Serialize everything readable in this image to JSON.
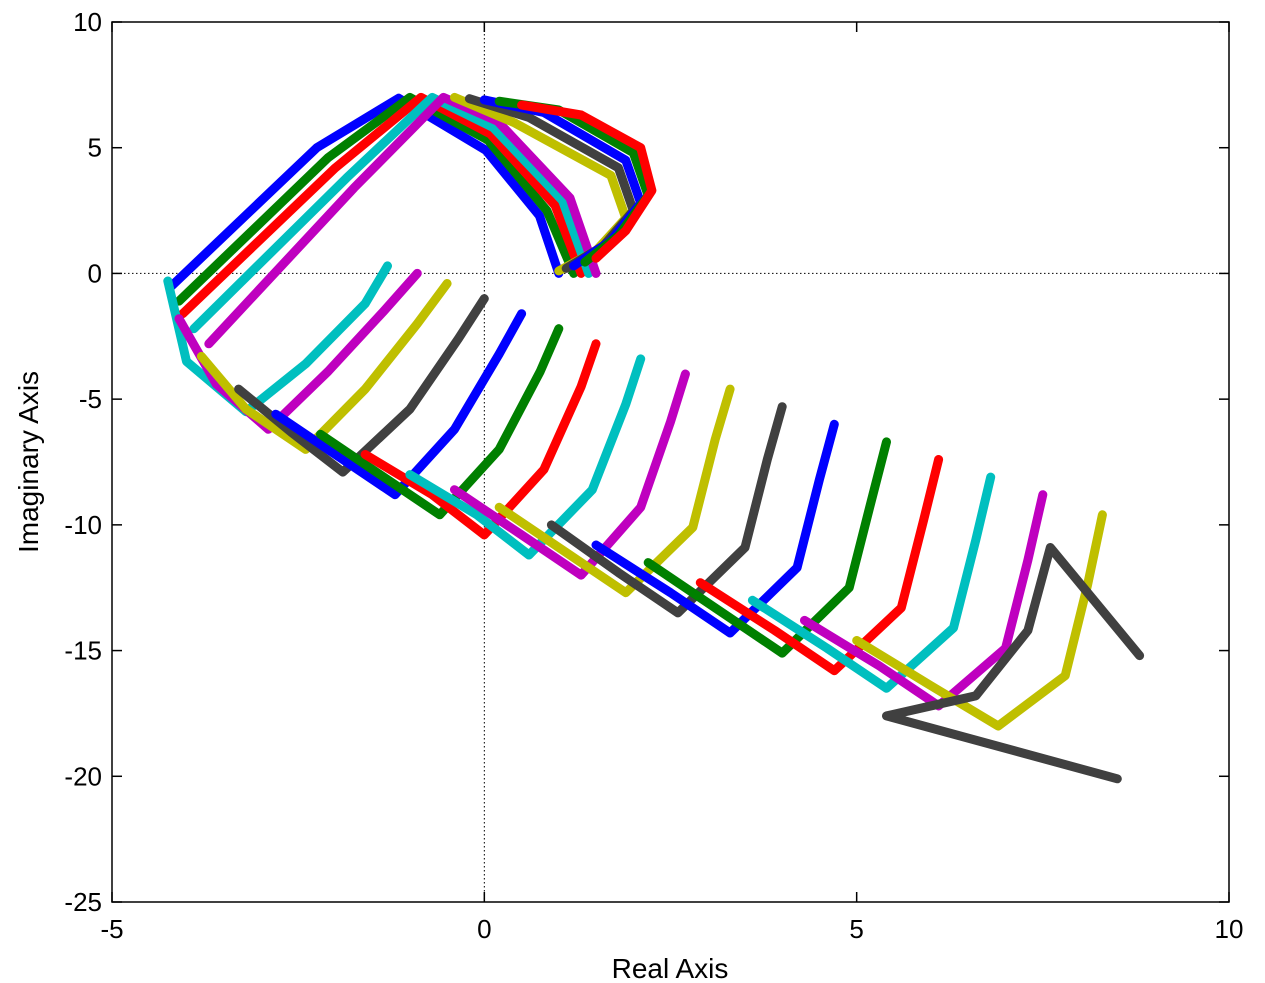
{
  "chart_data": {
    "type": "scatter",
    "title": "",
    "xlabel": "Real Axis",
    "ylabel": "Imaginary Axis",
    "xlim": [
      -5,
      10
    ],
    "ylim": [
      -25,
      10
    ],
    "xticks": [
      -5,
      0,
      5,
      10
    ],
    "yticks": [
      10,
      5,
      0,
      -5,
      -10,
      -15,
      -20,
      -25
    ],
    "grid": false,
    "legend": "none",
    "zero_lines": true,
    "colors": [
      "#0000ff",
      "#008000",
      "#ff0000",
      "#00bfbf",
      "#bf00bf",
      "#bfbf00",
      "#404040"
    ],
    "series": [
      {
        "values": [
          [
            1.0,
            0.0
          ],
          [
            0.74,
            2.3
          ],
          [
            0.02,
            4.9
          ],
          [
            -1.15,
            6.97
          ],
          [
            -2.25,
            5.0
          ],
          [
            -4.2,
            -0.5
          ]
        ]
      },
      {
        "values": [
          [
            1.2,
            0.0
          ],
          [
            0.84,
            2.5
          ],
          [
            0.05,
            5.3
          ],
          [
            -1.0,
            7.0
          ],
          [
            -2.1,
            4.6
          ],
          [
            -4.1,
            -1.1
          ]
        ]
      },
      {
        "values": [
          [
            1.3,
            0.0
          ],
          [
            0.95,
            2.7
          ],
          [
            0.08,
            5.55
          ],
          [
            -0.85,
            7.0
          ],
          [
            -2.0,
            4.2
          ],
          [
            -4.05,
            -1.6
          ]
        ]
      },
      {
        "values": [
          [
            1.4,
            0.0
          ],
          [
            1.05,
            2.9
          ],
          [
            0.12,
            5.8
          ],
          [
            -0.7,
            7.0
          ],
          [
            -1.85,
            3.8
          ],
          [
            -3.9,
            -2.2
          ]
        ]
      },
      {
        "values": [
          [
            1.5,
            0.0
          ],
          [
            1.15,
            3.0
          ],
          [
            0.18,
            6.05
          ],
          [
            -0.55,
            7.0
          ],
          [
            -1.75,
            3.4
          ],
          [
            -3.7,
            -2.8
          ]
        ]
      },
      {
        "values": [
          [
            1.0,
            0.1
          ],
          [
            1.5,
            0.9
          ],
          [
            1.9,
            2.2
          ],
          [
            1.7,
            3.9
          ],
          [
            0.4,
            6.0
          ],
          [
            -0.4,
            7.0
          ]
        ]
      },
      {
        "values": [
          [
            1.1,
            0.2
          ],
          [
            1.6,
            1.1
          ],
          [
            2.0,
            2.5
          ],
          [
            1.8,
            4.2
          ],
          [
            0.6,
            6.2
          ],
          [
            -0.2,
            6.95
          ]
        ]
      },
      {
        "values": [
          [
            1.2,
            0.3
          ],
          [
            1.7,
            1.3
          ],
          [
            2.1,
            2.8
          ],
          [
            1.9,
            4.5
          ],
          [
            0.8,
            6.4
          ],
          [
            0.0,
            6.9
          ]
        ]
      },
      {
        "values": [
          [
            1.35,
            0.45
          ],
          [
            1.8,
            1.5
          ],
          [
            2.2,
            3.1
          ],
          [
            2.0,
            4.8
          ],
          [
            1.0,
            6.5
          ],
          [
            0.2,
            6.85
          ]
        ]
      },
      {
        "values": [
          [
            1.5,
            0.6
          ],
          [
            1.9,
            1.7
          ],
          [
            2.25,
            3.3
          ],
          [
            2.1,
            5.0
          ],
          [
            1.3,
            6.3
          ],
          [
            0.5,
            6.7
          ]
        ]
      },
      {
        "values": [
          [
            -1.3,
            0.3
          ],
          [
            -1.6,
            -1.2
          ],
          [
            -2.4,
            -3.6
          ],
          [
            -3.2,
            -5.5
          ],
          [
            -4.0,
            -3.5
          ],
          [
            -4.25,
            -0.3
          ]
        ]
      },
      {
        "values": [
          [
            -0.9,
            0.0
          ],
          [
            -1.35,
            -1.5
          ],
          [
            -2.1,
            -3.9
          ],
          [
            -2.9,
            -6.2
          ],
          [
            -3.6,
            -4.4
          ],
          [
            -4.1,
            -1.8
          ]
        ]
      },
      {
        "values": [
          [
            -0.5,
            -0.4
          ],
          [
            -0.9,
            -2.0
          ],
          [
            -1.6,
            -4.6
          ],
          [
            -2.4,
            -7.0
          ],
          [
            -3.2,
            -5.4
          ],
          [
            -3.8,
            -3.3
          ]
        ]
      },
      {
        "values": [
          [
            0.0,
            -1.0
          ],
          [
            -0.35,
            -2.6
          ],
          [
            -1.0,
            -5.4
          ],
          [
            -1.9,
            -7.9
          ],
          [
            -2.6,
            -6.3
          ],
          [
            -3.3,
            -4.6
          ]
        ]
      },
      {
        "values": [
          [
            0.5,
            -1.6
          ],
          [
            0.2,
            -3.2
          ],
          [
            -0.4,
            -6.2
          ],
          [
            -1.2,
            -8.8
          ],
          [
            -2.0,
            -7.2
          ],
          [
            -2.8,
            -5.6
          ]
        ]
      },
      {
        "values": [
          [
            1.0,
            -2.2
          ],
          [
            0.75,
            -3.9
          ],
          [
            0.2,
            -7.0
          ],
          [
            -0.6,
            -9.6
          ],
          [
            -1.4,
            -8.0
          ],
          [
            -2.2,
            -6.4
          ]
        ]
      },
      {
        "values": [
          [
            1.5,
            -2.8
          ],
          [
            1.3,
            -4.5
          ],
          [
            0.8,
            -7.8
          ],
          [
            0.0,
            -10.4
          ],
          [
            -0.7,
            -8.8
          ],
          [
            -1.6,
            -7.2
          ]
        ]
      },
      {
        "values": [
          [
            2.1,
            -3.4
          ],
          [
            1.9,
            -5.2
          ],
          [
            1.45,
            -8.6
          ],
          [
            0.6,
            -11.2
          ],
          [
            -0.1,
            -9.6
          ],
          [
            -1.0,
            -8.0
          ]
        ]
      },
      {
        "values": [
          [
            2.7,
            -4.0
          ],
          [
            2.5,
            -5.9
          ],
          [
            2.1,
            -9.3
          ],
          [
            1.3,
            -12.0
          ],
          [
            0.5,
            -10.4
          ],
          [
            -0.4,
            -8.6
          ]
        ]
      },
      {
        "values": [
          [
            3.3,
            -4.6
          ],
          [
            3.1,
            -6.6
          ],
          [
            2.8,
            -10.1
          ],
          [
            1.9,
            -12.7
          ],
          [
            1.1,
            -11.1
          ],
          [
            0.2,
            -9.3
          ]
        ]
      },
      {
        "values": [
          [
            4.0,
            -5.3
          ],
          [
            3.8,
            -7.4
          ],
          [
            3.5,
            -10.9
          ],
          [
            2.6,
            -13.5
          ],
          [
            1.8,
            -11.9
          ],
          [
            0.9,
            -10.0
          ]
        ]
      },
      {
        "values": [
          [
            4.7,
            -6.0
          ],
          [
            4.5,
            -8.2
          ],
          [
            4.2,
            -11.7
          ],
          [
            3.3,
            -14.3
          ],
          [
            2.5,
            -12.7
          ],
          [
            1.5,
            -10.8
          ]
        ]
      },
      {
        "values": [
          [
            5.4,
            -6.7
          ],
          [
            5.2,
            -9.0
          ],
          [
            4.9,
            -12.5
          ],
          [
            4.0,
            -15.1
          ],
          [
            3.2,
            -13.5
          ],
          [
            2.2,
            -11.5
          ]
        ]
      },
      {
        "values": [
          [
            6.1,
            -7.4
          ],
          [
            5.9,
            -9.8
          ],
          [
            5.6,
            -13.3
          ],
          [
            4.7,
            -15.8
          ],
          [
            3.9,
            -14.2
          ],
          [
            2.9,
            -12.3
          ]
        ]
      },
      {
        "values": [
          [
            6.8,
            -8.1
          ],
          [
            6.6,
            -10.6
          ],
          [
            6.3,
            -14.1
          ],
          [
            5.4,
            -16.5
          ],
          [
            4.6,
            -14.9
          ],
          [
            3.6,
            -13.0
          ]
        ]
      },
      {
        "values": [
          [
            7.5,
            -8.8
          ],
          [
            7.3,
            -11.4
          ],
          [
            7.0,
            -14.9
          ],
          [
            6.1,
            -17.2
          ],
          [
            5.3,
            -15.6
          ],
          [
            4.3,
            -13.8
          ]
        ]
      },
      {
        "values": [
          [
            8.3,
            -9.6
          ],
          [
            8.1,
            -12.4
          ],
          [
            7.8,
            -16.0
          ],
          [
            6.9,
            -18.0
          ],
          [
            6.0,
            -16.4
          ],
          [
            5.0,
            -14.6
          ]
        ]
      },
      {
        "values": [
          [
            8.8,
            -15.2
          ],
          [
            7.6,
            -10.9
          ],
          [
            7.3,
            -14.2
          ],
          [
            6.6,
            -16.8
          ],
          [
            5.4,
            -17.6
          ],
          [
            8.5,
            -20.1
          ]
        ]
      }
    ]
  }
}
